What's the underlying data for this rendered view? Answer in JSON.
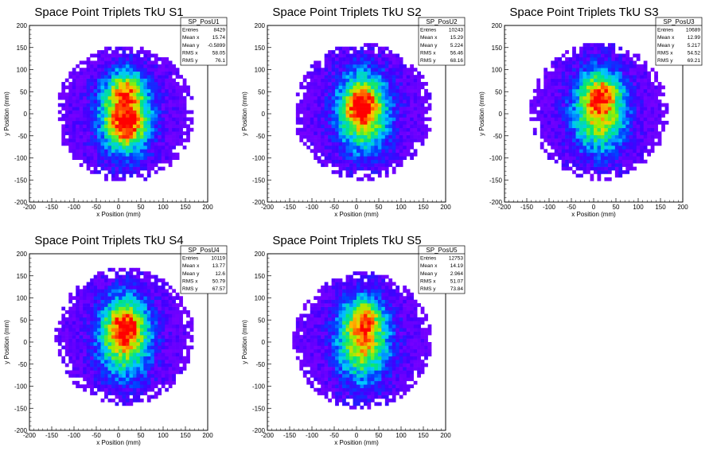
{
  "chart_data": [
    {
      "type": "heatmap",
      "title": "Space Point Triplets TkU S1",
      "xlabel": "x Position (mm)",
      "ylabel": "y Position (mm)",
      "xlim": [
        -200,
        200
      ],
      "ylim": [
        -200,
        200
      ],
      "ticks": [
        "-200",
        "-150",
        "-100",
        "-50",
        "0",
        "50",
        "100",
        "150",
        "200"
      ],
      "stats": {
        "name": "SP_PosU1",
        "rows": [
          [
            "Entries",
            "8429"
          ],
          [
            "Mean x",
            "15.74"
          ],
          [
            "Mean y",
            "-0.5899"
          ],
          [
            "RMS x",
            "58.05"
          ],
          [
            "RMS y",
            "76.1"
          ]
        ]
      },
      "distribution": {
        "center_x": 15,
        "center_y": 0,
        "radius": 155,
        "blobs": [
          [
            18,
            55
          ],
          [
            18,
            -30
          ]
        ]
      }
    },
    {
      "type": "heatmap",
      "title": "Space Point Triplets TkU S2",
      "xlabel": "x Position (mm)",
      "ylabel": "y Position (mm)",
      "xlim": [
        -200,
        200
      ],
      "ylim": [
        -200,
        200
      ],
      "ticks": [
        "-200",
        "-150",
        "-100",
        "-50",
        "0",
        "50",
        "100",
        "150",
        "200"
      ],
      "stats": {
        "name": "SP_PosU2",
        "rows": [
          [
            "Entries",
            "10243"
          ],
          [
            "Mean x",
            "15.29"
          ],
          [
            "Mean y",
            "5.224"
          ],
          [
            "RMS x",
            "56.46"
          ],
          [
            "RMS y",
            "68.16"
          ]
        ]
      },
      "distribution": {
        "center_x": 15,
        "center_y": 5,
        "radius": 155,
        "blobs": [
          [
            10,
            20
          ]
        ]
      }
    },
    {
      "type": "heatmap",
      "title": "Space Point Triplets TkU S3",
      "xlabel": "x Position (mm)",
      "ylabel": "y Position (mm)",
      "xlim": [
        -200,
        200
      ],
      "ylim": [
        -200,
        200
      ],
      "ticks": [
        "-200",
        "-150",
        "-100",
        "-50",
        "0",
        "50",
        "100",
        "150",
        "200"
      ],
      "stats": {
        "name": "SP_PosU3",
        "rows": [
          [
            "Entries",
            "10689"
          ],
          [
            "Mean x",
            "12.99"
          ],
          [
            "Mean y",
            "5.217"
          ],
          [
            "RMS x",
            "54.52"
          ],
          [
            "RMS y",
            "69.21"
          ]
        ]
      },
      "distribution": {
        "center_x": 13,
        "center_y": 5,
        "radius": 155,
        "blobs": [
          [
            20,
            50
          ]
        ]
      }
    },
    {
      "type": "heatmap",
      "title": "Space Point Triplets TkU S4",
      "xlabel": "x Position (mm)",
      "ylabel": "y Position (mm)",
      "xlim": [
        -200,
        200
      ],
      "ylim": [
        -200,
        200
      ],
      "ticks": [
        "-200",
        "-150",
        "-100",
        "-50",
        "0",
        "50",
        "100",
        "150",
        "200"
      ],
      "stats": {
        "name": "SP_PosU4",
        "rows": [
          [
            "Entries",
            "10119"
          ],
          [
            "Mean x",
            "13.77"
          ],
          [
            "Mean y",
            "12.6"
          ],
          [
            "RMS x",
            "50.79"
          ],
          [
            "RMS y",
            "67.57"
          ]
        ]
      },
      "distribution": {
        "center_x": 14,
        "center_y": 13,
        "radius": 155,
        "blobs": [
          [
            15,
            40
          ]
        ]
      }
    },
    {
      "type": "heatmap",
      "title": "Space Point Triplets TkU S5",
      "xlabel": "x Position (mm)",
      "ylabel": "y Position (mm)",
      "xlim": [
        -200,
        200
      ],
      "ylim": [
        -200,
        200
      ],
      "ticks": [
        "-200",
        "-150",
        "-100",
        "-50",
        "0",
        "50",
        "100",
        "150",
        "200"
      ],
      "stats": {
        "name": "SP_PosU5",
        "rows": [
          [
            "Entries",
            "12753"
          ],
          [
            "Mean x",
            "14.19"
          ],
          [
            "Mean y",
            "2.964"
          ],
          [
            "RMS x",
            "51.07"
          ],
          [
            "RMS y",
            "73.84"
          ]
        ]
      },
      "distribution": {
        "center_x": 14,
        "center_y": 3,
        "radius": 155,
        "blobs": [
          [
            20,
            60
          ]
        ]
      }
    }
  ]
}
